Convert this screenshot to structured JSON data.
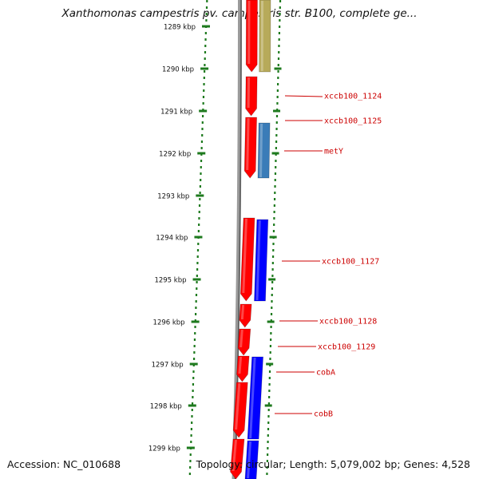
{
  "header": {
    "title": "Xanthomonas campestris pv. campestris str. B100, complete ge..."
  },
  "footer": {
    "accession": "Accession: NC_010688",
    "summary": "Topology: circular; Length: 5,079,002 bp; Genes: 4,528"
  },
  "colors": {
    "forward_gene": "#ff0000",
    "reverse_gene": "#0000ff",
    "tan_feature": "#b7aa5a",
    "steelblue_feature": "#3a7cb8",
    "tick": "#1e7a1e",
    "label": "#cc0000",
    "backbone": "#888888"
  },
  "scale_ticks": [
    "1289 kbp",
    "1290 kbp",
    "1291 kbp",
    "1292 kbp",
    "1293 kbp",
    "1294 kbp",
    "1295 kbp",
    "1296 kbp",
    "1297 kbp",
    "1298 kbp",
    "1299 kbp"
  ],
  "gene_labels": [
    "xccb100_1124",
    "xccb100_1125",
    "metY",
    "xccb100_1127",
    "xccb100_1128",
    "xccb100_1129",
    "cobA",
    "cobB"
  ]
}
